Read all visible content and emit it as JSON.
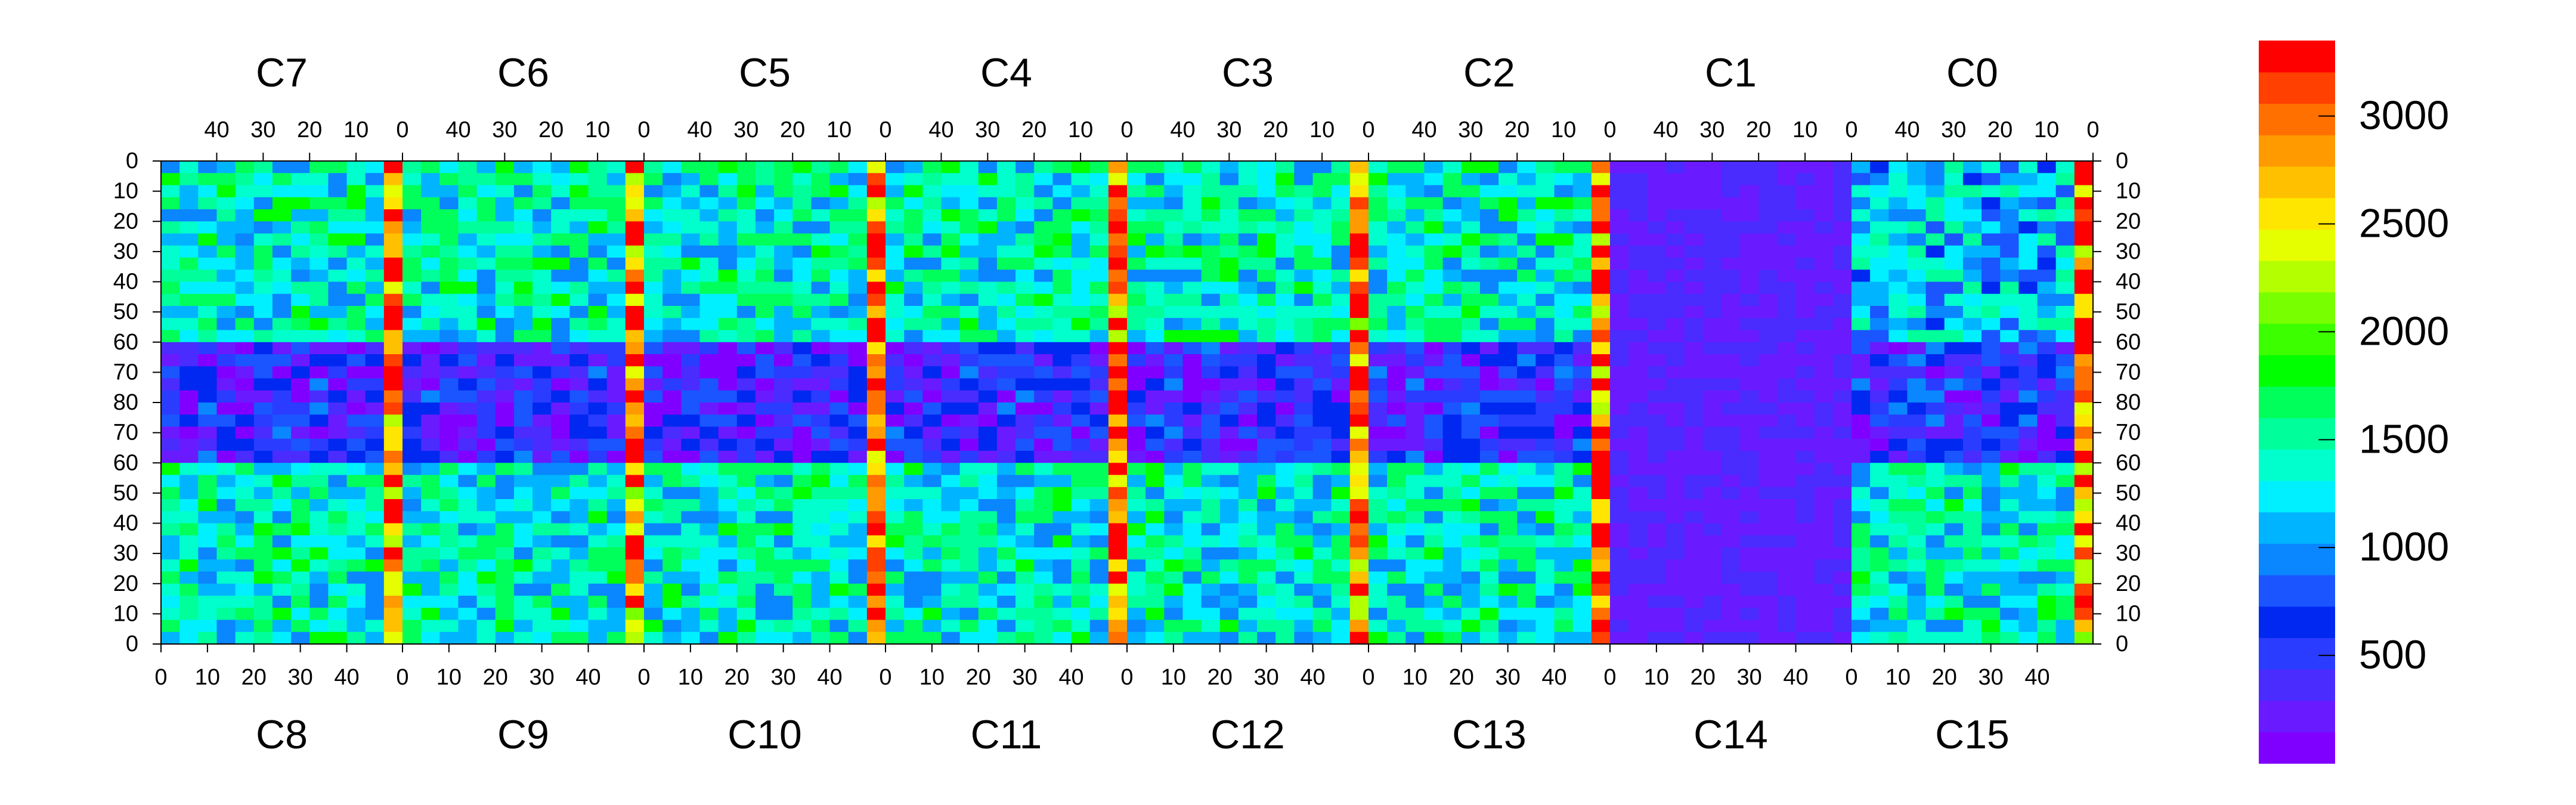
{
  "chart_data": {
    "type": "heatmap",
    "title": "",
    "chip_labels_top": [
      "C7",
      "C6",
      "C5",
      "C4",
      "C3",
      "C2",
      "C1",
      "C0"
    ],
    "chip_labels_bottom": [
      "C8",
      "C9",
      "C10",
      "C11",
      "C12",
      "C13",
      "C14",
      "C15"
    ],
    "x_ticks_top_per_chip": [
      "40",
      "30",
      "20",
      "10",
      "0"
    ],
    "x_ticks_bottom_per_chip": [
      "0",
      "10",
      "20",
      "30",
      "40"
    ],
    "y_ticks_upper": [
      "0",
      "10",
      "20",
      "30",
      "40",
      "50",
      "60",
      "70",
      "80"
    ],
    "y_ticks_lower": [
      "70",
      "60",
      "50",
      "40",
      "30",
      "20",
      "10",
      "0"
    ],
    "columns_per_chip": 52,
    "rows_per_half": 80,
    "zlim": [
      0,
      3350
    ],
    "colorbar_ticks": [
      "500",
      "1000",
      "1500",
      "2000",
      "2500",
      "3000"
    ],
    "colorbar_colors": [
      "#8000ff",
      "#6a1aff",
      "#4a2cff",
      "#2a3cff",
      "#0028f0",
      "#1a55ff",
      "#0a86ff",
      "#00b4ff",
      "#00f0ff",
      "#00ffcc",
      "#00ff9a",
      "#00ff5a",
      "#00ff00",
      "#3cff00",
      "#78ff00",
      "#b4ff00",
      "#e6ff00",
      "#ffe600",
      "#ffc000",
      "#ff9a00",
      "#ff7000",
      "#ff4000",
      "#ff0000"
    ],
    "grid": false
  }
}
